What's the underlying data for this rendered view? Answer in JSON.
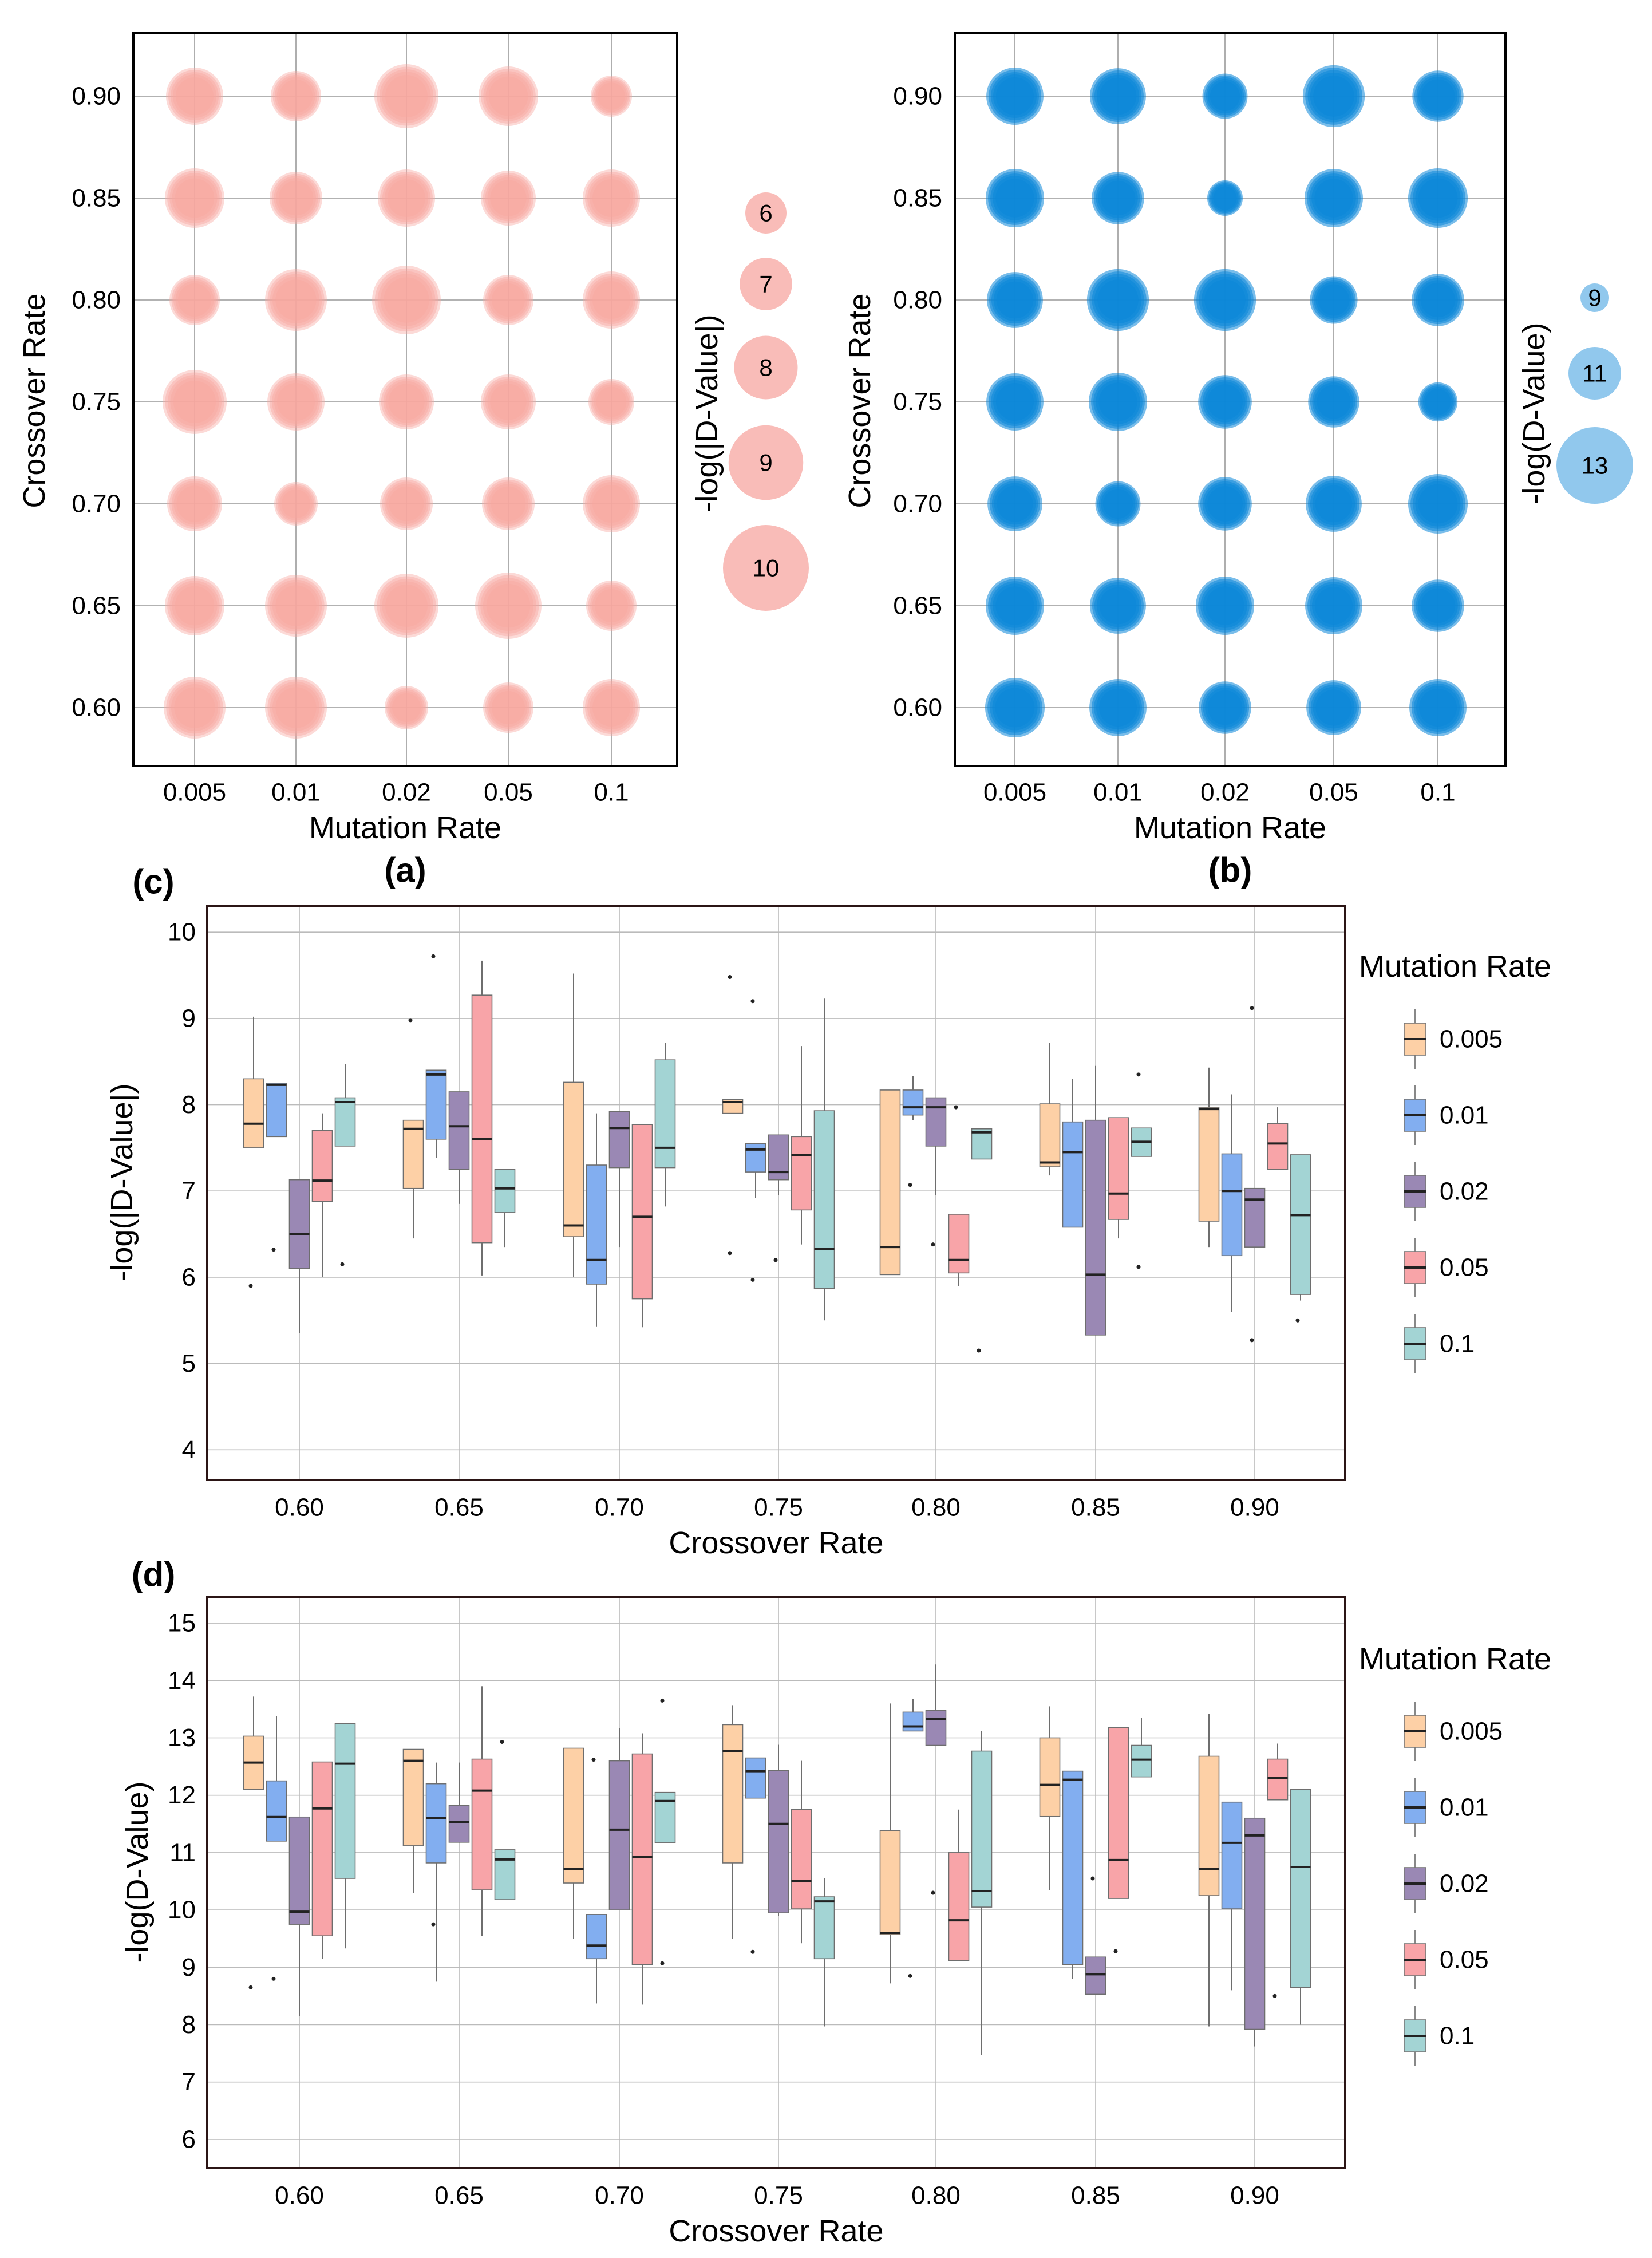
{
  "chart_data": [
    {
      "id": "a",
      "panel_label": "(a)",
      "type": "scatter",
      "subtype": "bubble",
      "xlabel": "Mutation Rate",
      "ylabel": "Crossover Rate",
      "x_categories": [
        "0.005",
        "0.01",
        "0.02",
        "0.05",
        "0.1"
      ],
      "y_categories": [
        "0.90",
        "0.85",
        "0.80",
        "0.75",
        "0.70",
        "0.65",
        "0.60"
      ],
      "size_legend_title": "-log(|D-Value|)",
      "size_legend": [
        6,
        7,
        8,
        9,
        10
      ],
      "color": "#f7a6a0",
      "values": [
        [
          8.6,
          8.3,
          8.9,
          8.7,
          7.9
        ],
        [
          8.7,
          8.4,
          8.6,
          8.5,
          8.6
        ],
        [
          8.3,
          8.8,
          9.1,
          8.3,
          8.6
        ],
        [
          8.9,
          8.6,
          8.5,
          8.5,
          8.1
        ],
        [
          8.5,
          8.0,
          8.4,
          8.4,
          8.6
        ],
        [
          8.7,
          8.8,
          8.9,
          9.0,
          8.3
        ],
        [
          8.8,
          8.8,
          8.0,
          8.3,
          8.6
        ]
      ]
    },
    {
      "id": "b",
      "panel_label": "(b)",
      "type": "scatter",
      "subtype": "bubble",
      "xlabel": "Mutation Rate",
      "ylabel": "Crossover Rate",
      "x_categories": [
        "0.005",
        "0.01",
        "0.02",
        "0.05",
        "0.1"
      ],
      "y_categories": [
        "0.90",
        "0.85",
        "0.80",
        "0.75",
        "0.70",
        "0.65",
        "0.60"
      ],
      "size_legend_title": "-log(D-Value)",
      "size_legend": [
        9,
        11,
        13
      ],
      "color": "#0b86d8",
      "values": [
        [
          12.4,
          12.3,
          11.4,
          12.8,
          11.9
        ],
        [
          12.5,
          12.0,
          10.6,
          12.5,
          12.6
        ],
        [
          12.3,
          12.8,
          12.8,
          11.6,
          12.0
        ],
        [
          12.4,
          12.5,
          12.1,
          11.9,
          10.9
        ],
        [
          12.2,
          11.4,
          12.1,
          12.3,
          12.6
        ],
        [
          12.5,
          12.3,
          12.5,
          12.4,
          12.0
        ],
        [
          12.6,
          12.4,
          12.0,
          12.2,
          12.4
        ]
      ]
    },
    {
      "id": "c",
      "panel_label": "(c)",
      "type": "box",
      "xlabel": "Crossover Rate",
      "ylabel": "-log(|D-Value|)",
      "ylim": [
        3.65,
        10.3
      ],
      "yticks": [
        4,
        5,
        6,
        7,
        8,
        9,
        10
      ],
      "categories": [
        "0.60",
        "0.65",
        "0.70",
        "0.75",
        "0.80",
        "0.85",
        "0.90"
      ],
      "legend_title": "Mutation Rate",
      "series": [
        {
          "name": "0.005",
          "color": "#fdd0a6",
          "boxes": [
            {
              "min": 7.5,
              "q1": 7.5,
              "median": 7.78,
              "q3": 8.3,
              "max": 9.02,
              "outliers": [
                5.9
              ]
            },
            {
              "min": 6.45,
              "q1": 7.03,
              "median": 7.72,
              "q3": 7.82,
              "max": 7.82,
              "outliers": [
                8.98
              ]
            },
            {
              "min": 6.0,
              "q1": 6.47,
              "median": 6.6,
              "q3": 8.26,
              "max": 9.52,
              "outliers": []
            },
            {
              "min": 7.9,
              "q1": 7.9,
              "median": 8.03,
              "q3": 8.06,
              "max": 8.06,
              "outliers": [
                9.48,
                6.28
              ]
            },
            {
              "min": 6.03,
              "q1": 6.03,
              "median": 6.35,
              "q3": 8.17,
              "max": 8.17,
              "outliers": []
            },
            {
              "min": 7.18,
              "q1": 7.28,
              "median": 7.33,
              "q3": 8.01,
              "max": 8.72,
              "outliers": []
            },
            {
              "min": 6.35,
              "q1": 6.65,
              "median": 7.95,
              "q3": 7.97,
              "max": 8.43,
              "outliers": []
            }
          ]
        },
        {
          "name": "0.01",
          "color": "#82aef0",
          "boxes": [
            {
              "min": 7.63,
              "q1": 7.63,
              "median": 8.23,
              "q3": 8.25,
              "max": 8.25,
              "outliers": [
                6.32
              ]
            },
            {
              "min": 7.38,
              "q1": 7.6,
              "median": 8.35,
              "q3": 8.4,
              "max": 8.4,
              "outliers": [
                9.72
              ]
            },
            {
              "min": 5.43,
              "q1": 5.92,
              "median": 6.2,
              "q3": 7.3,
              "max": 7.9,
              "outliers": []
            },
            {
              "min": 6.92,
              "q1": 7.22,
              "median": 7.48,
              "q3": 7.55,
              "max": 7.55,
              "outliers": [
                9.2,
                5.97
              ]
            },
            {
              "min": 7.82,
              "q1": 7.88,
              "median": 7.97,
              "q3": 8.17,
              "max": 8.33,
              "outliers": [
                7.07
              ]
            },
            {
              "min": 6.58,
              "q1": 6.58,
              "median": 7.45,
              "q3": 7.8,
              "max": 8.3,
              "outliers": []
            },
            {
              "min": 5.6,
              "q1": 6.25,
              "median": 7.0,
              "q3": 7.43,
              "max": 8.12,
              "outliers": []
            }
          ]
        },
        {
          "name": "0.02",
          "color": "#9a88b4",
          "boxes": [
            {
              "min": 5.35,
              "q1": 6.1,
              "median": 6.5,
              "q3": 7.13,
              "max": 7.13,
              "outliers": []
            },
            {
              "min": 6.85,
              "q1": 7.25,
              "median": 7.75,
              "q3": 8.15,
              "max": 8.15,
              "outliers": []
            },
            {
              "min": 6.35,
              "q1": 7.27,
              "median": 7.73,
              "q3": 7.92,
              "max": 7.92,
              "outliers": []
            },
            {
              "min": 6.95,
              "q1": 7.13,
              "median": 7.22,
              "q3": 7.65,
              "max": 7.65,
              "outliers": [
                6.2
              ]
            },
            {
              "min": 6.95,
              "q1": 7.52,
              "median": 7.97,
              "q3": 8.08,
              "max": 8.08,
              "outliers": [
                6.38
              ]
            },
            {
              "min": 5.33,
              "q1": 5.33,
              "median": 6.03,
              "q3": 7.82,
              "max": 8.45,
              "outliers": []
            },
            {
              "min": 6.35,
              "q1": 6.35,
              "median": 6.9,
              "q3": 7.03,
              "max": 7.03,
              "outliers": [
                9.12,
                5.27
              ]
            }
          ]
        },
        {
          "name": "0.05",
          "color": "#f8a4a8",
          "boxes": [
            {
              "min": 6.0,
              "q1": 6.88,
              "median": 7.12,
              "q3": 7.7,
              "max": 7.9,
              "outliers": []
            },
            {
              "min": 6.02,
              "q1": 6.4,
              "median": 7.6,
              "q3": 9.27,
              "max": 9.67,
              "outliers": []
            },
            {
              "min": 5.42,
              "q1": 5.75,
              "median": 6.7,
              "q3": 7.77,
              "max": 7.77,
              "outliers": []
            },
            {
              "min": 6.38,
              "q1": 6.78,
              "median": 7.42,
              "q3": 7.63,
              "max": 8.68,
              "outliers": []
            },
            {
              "min": 5.9,
              "q1": 6.05,
              "median": 6.2,
              "q3": 6.73,
              "max": 6.73,
              "outliers": [
                7.97
              ]
            },
            {
              "min": 6.45,
              "q1": 6.67,
              "median": 6.97,
              "q3": 7.85,
              "max": 7.85,
              "outliers": []
            },
            {
              "min": 7.25,
              "q1": 7.25,
              "median": 7.55,
              "q3": 7.78,
              "max": 7.97,
              "outliers": []
            }
          ]
        },
        {
          "name": "0.1",
          "color": "#a3d4d4",
          "boxes": [
            {
              "min": 7.52,
              "q1": 7.52,
              "median": 8.03,
              "q3": 8.08,
              "max": 8.47,
              "outliers": [
                6.15
              ]
            },
            {
              "min": 6.35,
              "q1": 6.75,
              "median": 7.03,
              "q3": 7.25,
              "max": 7.25,
              "outliers": []
            },
            {
              "min": 6.82,
              "q1": 7.27,
              "median": 7.5,
              "q3": 8.52,
              "max": 8.72,
              "outliers": []
            },
            {
              "min": 5.5,
              "q1": 5.87,
              "median": 6.33,
              "q3": 7.93,
              "max": 9.23,
              "outliers": []
            },
            {
              "min": 7.37,
              "q1": 7.37,
              "median": 7.68,
              "q3": 7.72,
              "max": 7.72,
              "outliers": [
                5.15
              ]
            },
            {
              "min": 7.4,
              "q1": 7.4,
              "median": 7.57,
              "q3": 7.73,
              "max": 7.73,
              "outliers": [
                8.35,
                6.12
              ]
            },
            {
              "min": 5.73,
              "q1": 5.8,
              "median": 6.72,
              "q3": 7.42,
              "max": 7.42,
              "outliers": [
                5.5
              ]
            }
          ]
        }
      ]
    },
    {
      "id": "d",
      "panel_label": "(d)",
      "type": "box",
      "xlabel": "Crossover Rate",
      "ylabel": "-log(D-Value)",
      "ylim": [
        5.5,
        15.45
      ],
      "yticks": [
        6,
        7,
        8,
        9,
        10,
        11,
        12,
        13,
        14,
        15
      ],
      "categories": [
        "0.60",
        "0.65",
        "0.70",
        "0.75",
        "0.80",
        "0.85",
        "0.90"
      ],
      "legend_title": "Mutation Rate",
      "series": [
        {
          "name": "0.005",
          "color": "#fdd0a6",
          "boxes": [
            {
              "min": 12.1,
              "q1": 12.1,
              "median": 12.57,
              "q3": 13.03,
              "max": 13.72,
              "outliers": [
                8.65
              ]
            },
            {
              "min": 10.3,
              "q1": 11.12,
              "median": 12.6,
              "q3": 12.8,
              "max": 12.8,
              "outliers": []
            },
            {
              "min": 9.5,
              "q1": 10.47,
              "median": 10.72,
              "q3": 12.82,
              "max": 12.82,
              "outliers": []
            },
            {
              "min": 9.5,
              "q1": 10.82,
              "median": 12.77,
              "q3": 13.23,
              "max": 13.57,
              "outliers": []
            },
            {
              "min": 8.72,
              "q1": 9.57,
              "median": 9.6,
              "q3": 11.38,
              "max": 13.6,
              "outliers": []
            },
            {
              "min": 10.35,
              "q1": 11.63,
              "median": 12.18,
              "q3": 13.0,
              "max": 13.55,
              "outliers": []
            },
            {
              "min": 7.97,
              "q1": 10.25,
              "median": 10.72,
              "q3": 12.68,
              "max": 13.42,
              "outliers": []
            }
          ]
        },
        {
          "name": "0.01",
          "color": "#82aef0",
          "boxes": [
            {
              "min": 11.2,
              "q1": 11.2,
              "median": 11.62,
              "q3": 12.25,
              "max": 13.38,
              "outliers": [
                8.8
              ]
            },
            {
              "min": 8.75,
              "q1": 10.82,
              "median": 11.6,
              "q3": 12.2,
              "max": 12.57,
              "outliers": [
                9.75
              ]
            },
            {
              "min": 8.37,
              "q1": 9.15,
              "median": 9.38,
              "q3": 9.92,
              "max": 9.92,
              "outliers": [
                12.62
              ]
            },
            {
              "min": 11.95,
              "q1": 11.95,
              "median": 12.42,
              "q3": 12.65,
              "max": 12.65,
              "outliers": [
                9.27
              ]
            },
            {
              "min": 13.12,
              "q1": 13.12,
              "median": 13.2,
              "q3": 13.45,
              "max": 13.68,
              "outliers": [
                8.85
              ]
            },
            {
              "min": 8.8,
              "q1": 9.05,
              "median": 12.27,
              "q3": 12.42,
              "max": 12.42,
              "outliers": []
            },
            {
              "min": 8.6,
              "q1": 10.02,
              "median": 11.17,
              "q3": 11.88,
              "max": 11.88,
              "outliers": []
            }
          ]
        },
        {
          "name": "0.02",
          "color": "#9a88b4",
          "boxes": [
            {
              "min": 8.15,
              "q1": 9.75,
              "median": 9.97,
              "q3": 11.62,
              "max": 11.62,
              "outliers": []
            },
            {
              "min": 11.18,
              "q1": 11.18,
              "median": 11.53,
              "q3": 11.82,
              "max": 12.57,
              "outliers": []
            },
            {
              "min": 10.0,
              "q1": 10.0,
              "median": 11.4,
              "q3": 12.6,
              "max": 13.17,
              "outliers": []
            },
            {
              "min": 9.9,
              "q1": 9.95,
              "median": 11.5,
              "q3": 12.43,
              "max": 12.88,
              "outliers": []
            },
            {
              "min": 12.87,
              "q1": 12.87,
              "median": 13.33,
              "q3": 13.48,
              "max": 14.28,
              "outliers": [
                10.3
              ]
            },
            {
              "min": 8.53,
              "q1": 8.53,
              "median": 8.88,
              "q3": 9.18,
              "max": 9.18,
              "outliers": [
                10.55
              ]
            },
            {
              "min": 7.62,
              "q1": 7.92,
              "median": 11.3,
              "q3": 11.6,
              "max": 11.6,
              "outliers": []
            }
          ]
        },
        {
          "name": "0.05",
          "color": "#f8a4a8",
          "boxes": [
            {
              "min": 9.15,
              "q1": 9.55,
              "median": 11.77,
              "q3": 12.58,
              "max": 12.58,
              "outliers": []
            },
            {
              "min": 9.55,
              "q1": 10.35,
              "median": 12.08,
              "q3": 12.63,
              "max": 13.9,
              "outliers": []
            },
            {
              "min": 8.35,
              "q1": 9.05,
              "median": 10.92,
              "q3": 12.72,
              "max": 13.08,
              "outliers": []
            },
            {
              "min": 9.42,
              "q1": 10.02,
              "median": 10.5,
              "q3": 11.75,
              "max": 12.6,
              "outliers": []
            },
            {
              "min": 9.12,
              "q1": 9.12,
              "median": 9.82,
              "q3": 11.0,
              "max": 11.75,
              "outliers": []
            },
            {
              "min": 10.2,
              "q1": 10.2,
              "median": 10.87,
              "q3": 13.18,
              "max": 13.18,
              "outliers": [
                9.28
              ]
            },
            {
              "min": 11.92,
              "q1": 11.92,
              "median": 12.3,
              "q3": 12.63,
              "max": 12.9,
              "outliers": [
                8.5
              ]
            }
          ]
        },
        {
          "name": "0.1",
          "color": "#a3d4d4",
          "boxes": [
            {
              "min": 9.33,
              "q1": 10.55,
              "median": 12.55,
              "q3": 13.25,
              "max": 13.25,
              "outliers": []
            },
            {
              "min": 10.18,
              "q1": 10.18,
              "median": 10.88,
              "q3": 11.05,
              "max": 11.05,
              "outliers": [
                12.93
              ]
            },
            {
              "min": 11.17,
              "q1": 11.17,
              "median": 11.9,
              "q3": 12.05,
              "max": 12.05,
              "outliers": [
                13.65,
                9.07
              ]
            },
            {
              "min": 7.97,
              "q1": 9.15,
              "median": 10.15,
              "q3": 10.23,
              "max": 10.55,
              "outliers": []
            },
            {
              "min": 7.47,
              "q1": 10.05,
              "median": 10.33,
              "q3": 12.77,
              "max": 13.12,
              "outliers": []
            },
            {
              "min": 12.32,
              "q1": 12.32,
              "median": 12.62,
              "q3": 12.87,
              "max": 13.35,
              "outliers": []
            },
            {
              "min": 8.0,
              "q1": 8.65,
              "median": 10.75,
              "q3": 12.1,
              "max": 12.1,
              "outliers": []
            }
          ]
        }
      ]
    }
  ]
}
